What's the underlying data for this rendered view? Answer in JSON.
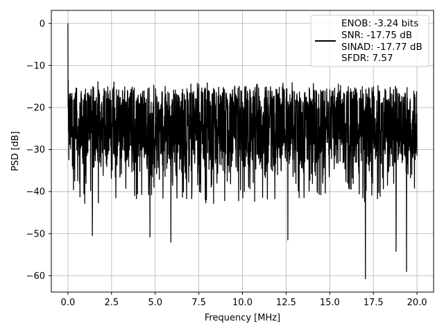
{
  "chart_data": {
    "type": "line",
    "title": "",
    "xlabel": "Frequency [MHz]",
    "ylabel": "PSD [dB]",
    "xlim": [
      -0.95,
      20.95
    ],
    "ylim": [
      -63.9,
      3.1
    ],
    "xticks": [
      0.0,
      2.5,
      5.0,
      7.5,
      10.0,
      12.5,
      15.0,
      17.5,
      20.0
    ],
    "xtick_labels": [
      "0.0",
      "2.5",
      "5.0",
      "7.5",
      "10.0",
      "12.5",
      "15.0",
      "17.5",
      "20.0"
    ],
    "yticks": [
      0,
      -10,
      -20,
      -30,
      -40,
      -50,
      -60
    ],
    "ytick_labels": [
      "0",
      "−10",
      "−20",
      "−30",
      "−40",
      "−50",
      "−60"
    ],
    "grid": true,
    "legend_position": "top-right",
    "line_color": "#000000",
    "series": [
      {
        "x_range": [
          0.0,
          20.0
        ],
        "peak": {
          "x": 0.0,
          "y": 0.0
        },
        "upper_envelope_db": -14,
        "typical_band_db": [
          -35,
          -15
        ],
        "deep_notches": [
          {
            "x": 1.4,
            "y": -50.5
          },
          {
            "x": 4.7,
            "y": -50.8
          },
          {
            "x": 5.9,
            "y": -52.0
          },
          {
            "x": 12.6,
            "y": -51.5
          },
          {
            "x": 17.05,
            "y": -60.7
          },
          {
            "x": 18.8,
            "y": -54.2
          },
          {
            "x": 19.4,
            "y": -59.0
          }
        ]
      }
    ],
    "legend": {
      "entries": [
        "ENOB: -3.24 bits",
        "SNR: -17.75 dB",
        "SINAD: -17.77 dB",
        "SFDR: 7.57"
      ]
    }
  }
}
